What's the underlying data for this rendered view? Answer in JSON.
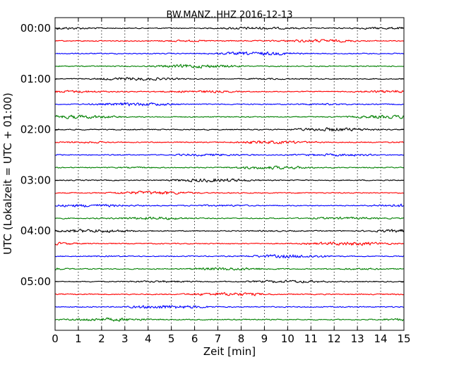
{
  "chart_data": {
    "type": "line",
    "subtype": "dayplot-seismogram",
    "title": "BW.MANZ..HHZ 2016-12-13",
    "xlabel": "Zeit  [min]",
    "ylabel": "UTC (Lokalzeit = UTC + 01:00)",
    "xlim": [
      0,
      15
    ],
    "x_ticks": [
      "0",
      "1",
      "2",
      "3",
      "4",
      "5",
      "6",
      "7",
      "8",
      "9",
      "10",
      "11",
      "12",
      "13",
      "14",
      "15"
    ],
    "y_tick_labels": [
      "00:00",
      "01:00",
      "02:00",
      "03:00",
      "04:00",
      "05:00"
    ],
    "minutes_per_trace": 15,
    "x_grid": "dotted",
    "trace_colors": [
      "#000000",
      "#ff0000",
      "#0000ff",
      "#008000"
    ],
    "trace_count": 24,
    "traces": [
      {
        "start": "00:00",
        "color": "#000000"
      },
      {
        "start": "00:15",
        "color": "#ff0000"
      },
      {
        "start": "00:30",
        "color": "#0000ff"
      },
      {
        "start": "00:45",
        "color": "#008000"
      },
      {
        "start": "01:00",
        "color": "#000000"
      },
      {
        "start": "01:15",
        "color": "#ff0000"
      },
      {
        "start": "01:30",
        "color": "#0000ff"
      },
      {
        "start": "01:45",
        "color": "#008000"
      },
      {
        "start": "02:00",
        "color": "#000000"
      },
      {
        "start": "02:15",
        "color": "#ff0000"
      },
      {
        "start": "02:30",
        "color": "#0000ff"
      },
      {
        "start": "02:45",
        "color": "#008000"
      },
      {
        "start": "03:00",
        "color": "#000000"
      },
      {
        "start": "03:15",
        "color": "#ff0000"
      },
      {
        "start": "03:30",
        "color": "#0000ff"
      },
      {
        "start": "03:45",
        "color": "#008000"
      },
      {
        "start": "04:00",
        "color": "#000000"
      },
      {
        "start": "04:15",
        "color": "#ff0000"
      },
      {
        "start": "04:30",
        "color": "#0000ff"
      },
      {
        "start": "04:45",
        "color": "#008000"
      },
      {
        "start": "05:00",
        "color": "#000000"
      },
      {
        "start": "05:15",
        "color": "#ff0000"
      },
      {
        "start": "05:30",
        "color": "#0000ff"
      },
      {
        "start": "05:45",
        "color": "#008000"
      }
    ]
  }
}
